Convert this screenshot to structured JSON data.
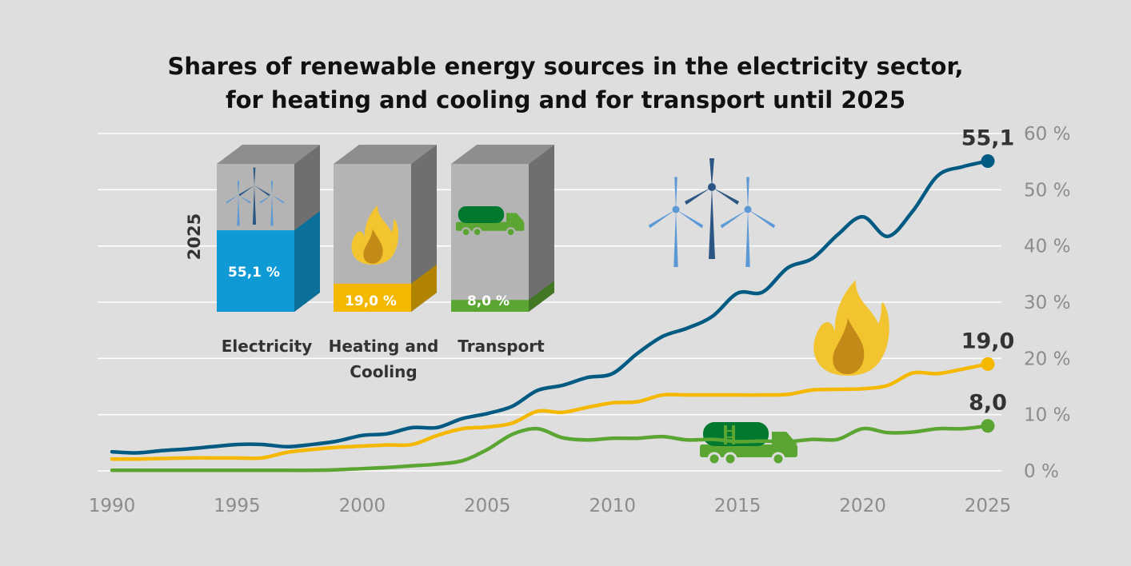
{
  "title_lines": [
    "Shares of renewable energy sources in the electricity sector,",
    "for heating and cooling and for transport until 2025"
  ],
  "chart_data": {
    "type": "line",
    "title": "Shares of renewable energy sources in the electricity sector, for heating and cooling and for transport until 2025",
    "xlim": [
      1990,
      2025
    ],
    "ylim": [
      0,
      60
    ],
    "x_ticks": [
      "1990",
      "1995",
      "2000",
      "2005",
      "2010",
      "2015",
      "2020",
      "2025"
    ],
    "y_ticks": [
      "0 %",
      "10 %",
      "20 %",
      "30 %",
      "40 %",
      "50 %",
      "60 %"
    ],
    "grid": true,
    "x": [
      1990,
      1991,
      1992,
      1993,
      1994,
      1995,
      1996,
      1997,
      1998,
      1999,
      2000,
      2001,
      2002,
      2003,
      2004,
      2005,
      2006,
      2007,
      2008,
      2009,
      2010,
      2011,
      2012,
      2013,
      2014,
      2015,
      2016,
      2017,
      2018,
      2019,
      2020,
      2021,
      2022,
      2023,
      2024,
      2025
    ],
    "series": [
      {
        "key": "electricity",
        "color": "#005a82",
        "end_label": "55,1",
        "values": [
          3.4,
          3.2,
          3.6,
          3.9,
          4.3,
          4.7,
          4.7,
          4.3,
          4.7,
          5.3,
          6.3,
          6.6,
          7.7,
          7.7,
          9.3,
          10.2,
          11.5,
          14.3,
          15.2,
          16.6,
          17.3,
          20.9,
          23.9,
          25.4,
          27.5,
          31.6,
          31.8,
          36.1,
          37.8,
          42.0,
          45.2,
          41.7,
          46.2,
          52.5,
          54.1,
          55.1
        ]
      },
      {
        "key": "heating",
        "color": "#f5b800",
        "end_label": "19,0",
        "values": [
          2.1,
          2.1,
          2.2,
          2.3,
          2.3,
          2.3,
          2.3,
          3.3,
          3.8,
          4.2,
          4.4,
          4.6,
          4.7,
          6.3,
          7.5,
          7.8,
          8.5,
          10.6,
          10.4,
          11.3,
          12.1,
          12.3,
          13.5,
          13.5,
          13.5,
          13.5,
          13.5,
          13.6,
          14.4,
          14.5,
          14.6,
          15.2,
          17.4,
          17.3,
          18.1,
          19.0
        ]
      },
      {
        "key": "transport",
        "color": "#5ba532",
        "end_label": "8,0",
        "values": [
          0.1,
          0.1,
          0.1,
          0.1,
          0.1,
          0.1,
          0.1,
          0.1,
          0.1,
          0.2,
          0.4,
          0.6,
          0.9,
          1.2,
          1.8,
          3.8,
          6.5,
          7.5,
          5.9,
          5.5,
          5.8,
          5.8,
          6.1,
          5.5,
          5.6,
          5.2,
          5.3,
          5.2,
          5.6,
          5.6,
          7.5,
          6.8,
          6.9,
          7.5,
          7.5,
          8.0
        ]
      }
    ]
  },
  "inset": {
    "year_label": "2025",
    "bars": [
      {
        "key": "electricity",
        "label_lines": [
          "Electricity"
        ],
        "value": 55.1,
        "value_label": "55,1 %",
        "color": "#0f9ad6",
        "icon": "wind-turbine-icon"
      },
      {
        "key": "heating",
        "label_lines": [
          "Heating and",
          "Cooling"
        ],
        "value": 19.0,
        "value_label": "19,0 %",
        "color": "#f5b800",
        "icon": "flame-icon"
      },
      {
        "key": "transport",
        "label_lines": [
          "Transport"
        ],
        "value": 8.0,
        "value_label": "8,0 %",
        "color": "#5ba532",
        "icon": "tanker-truck-icon"
      }
    ]
  },
  "icons": [
    "wind-turbine-icon",
    "flame-icon",
    "tanker-truck-icon"
  ],
  "colors": {
    "background": "#dedede",
    "grid": "#ffffff",
    "axis_text": "#8c8c8c",
    "cube_grey": "#b4b4b4"
  }
}
